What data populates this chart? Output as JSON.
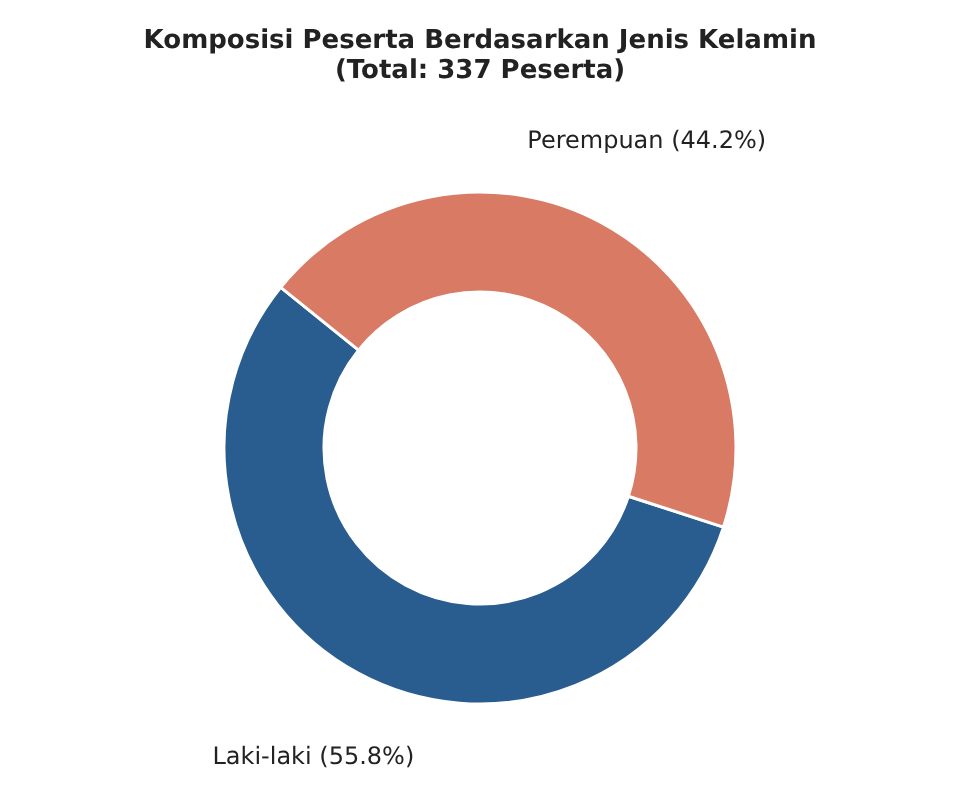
{
  "chart_data": {
    "type": "donut",
    "title": "Komposisi Peserta Berdasarkan Jenis Kelamin\n(Total: 337 Peserta)",
    "categories": [
      "Laki-laki (55.8%)",
      "Perempuan (44.2%)"
    ],
    "values": [
      55.8,
      44.2
    ],
    "colors": [
      "#2a5d8f",
      "#d97b64"
    ],
    "legend": false
  }
}
